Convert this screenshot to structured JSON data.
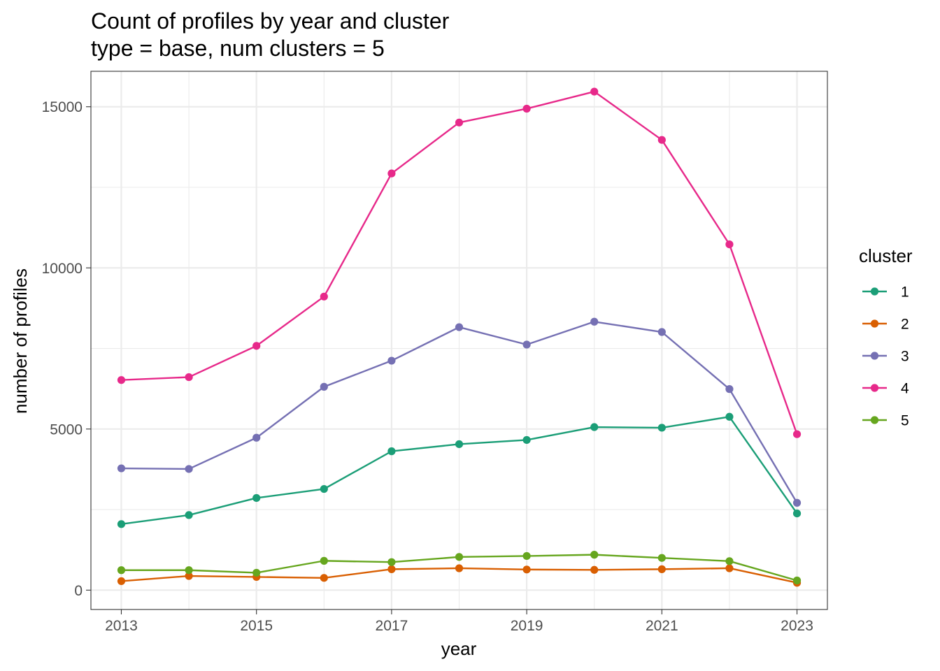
{
  "chart_data": {
    "type": "line",
    "title": "Count of profiles by year and cluster",
    "subtitle": "type = base, num clusters = 5",
    "xlabel": "year",
    "ylabel": "number of profiles",
    "x": [
      2013,
      2014,
      2015,
      2016,
      2017,
      2018,
      2019,
      2020,
      2021,
      2022,
      2023
    ],
    "xticks": [
      "2013",
      "2015",
      "2017",
      "2019",
      "2021",
      "2023"
    ],
    "yticks": [
      "0",
      "5000",
      "10000",
      "15000"
    ],
    "xlim": [
      2012.55,
      2023.45
    ],
    "ylim": [
      -600,
      16100
    ],
    "grid": true,
    "legend_title": "cluster",
    "legend_position": "right",
    "series": [
      {
        "name": "1",
        "color": "#1b9e77",
        "values": [
          2050,
          2330,
          2860,
          3140,
          4310,
          4530,
          4660,
          5060,
          5040,
          5380,
          2380
        ]
      },
      {
        "name": "2",
        "color": "#d95f02",
        "values": [
          280,
          440,
          410,
          380,
          650,
          680,
          640,
          630,
          650,
          680,
          230
        ]
      },
      {
        "name": "3",
        "color": "#7570b3",
        "values": [
          3780,
          3760,
          4730,
          6310,
          7120,
          8160,
          7620,
          8330,
          8010,
          6240,
          2710
        ]
      },
      {
        "name": "4",
        "color": "#e7298a",
        "values": [
          6520,
          6610,
          7580,
          9110,
          12930,
          14510,
          14940,
          15470,
          13970,
          10730,
          4840
        ]
      },
      {
        "name": "5",
        "color": "#66a61e",
        "values": [
          620,
          620,
          540,
          910,
          870,
          1030,
          1060,
          1100,
          1000,
          900,
          300
        ]
      }
    ]
  }
}
